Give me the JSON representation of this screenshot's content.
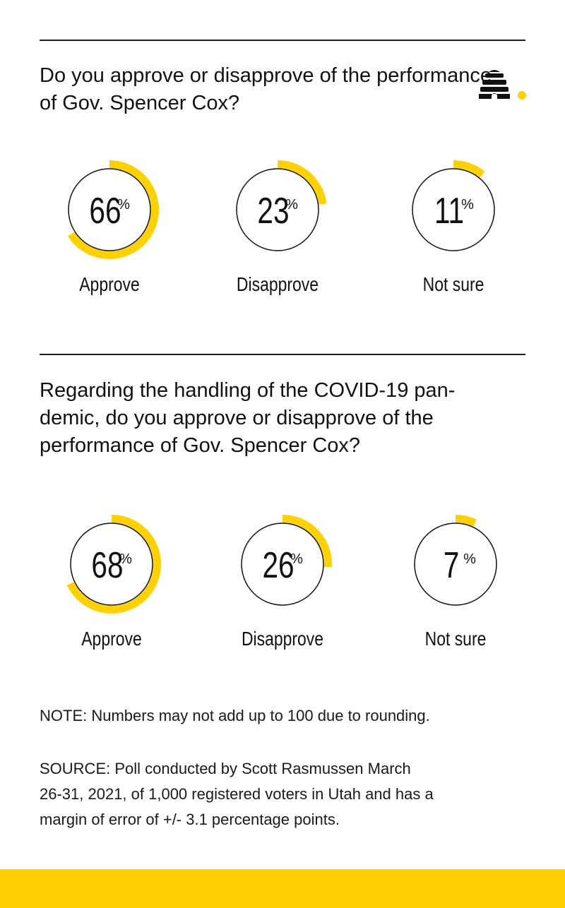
{
  "theme": {
    "accent": "#FFD100",
    "ink": "#111111"
  },
  "logo_icon": "beehive-icon",
  "chart_data": [
    {
      "type": "donut",
      "title": "Do you approve or disapprove of the performance of Gov. Spencer Cox?",
      "unit": "%",
      "categories": [
        "Approve",
        "Disapprove",
        "Not sure"
      ],
      "values": [
        66,
        23,
        11
      ],
      "display": [
        "66",
        "23",
        "11"
      ]
    },
    {
      "type": "donut",
      "title": "Regarding the handling of the COVID-19 pan-demic, do you approve or disapprove of the performance of Gov. Spencer Cox?",
      "title_lines": [
        "Regarding the handling of the COVID-19 pan-",
        "demic, do you approve or disapprove of the",
        "performance of Gov. Spencer Cox?"
      ],
      "unit": "%",
      "categories": [
        "Approve",
        "Disapprove",
        "Not sure"
      ],
      "values": [
        68,
        26,
        7
      ],
      "display": [
        "68",
        "26",
        "7"
      ]
    }
  ],
  "notes": {
    "note": "NOTE: Numbers may not add up to 100 due to rounding.",
    "source_lines": [
      "SOURCE: Poll conducted by Scott Rasmussen March",
      "26-31, 2021, of 1,000 registered voters in Utah and has a",
      "margin of error of +/- 3.1 percentage points."
    ]
  }
}
